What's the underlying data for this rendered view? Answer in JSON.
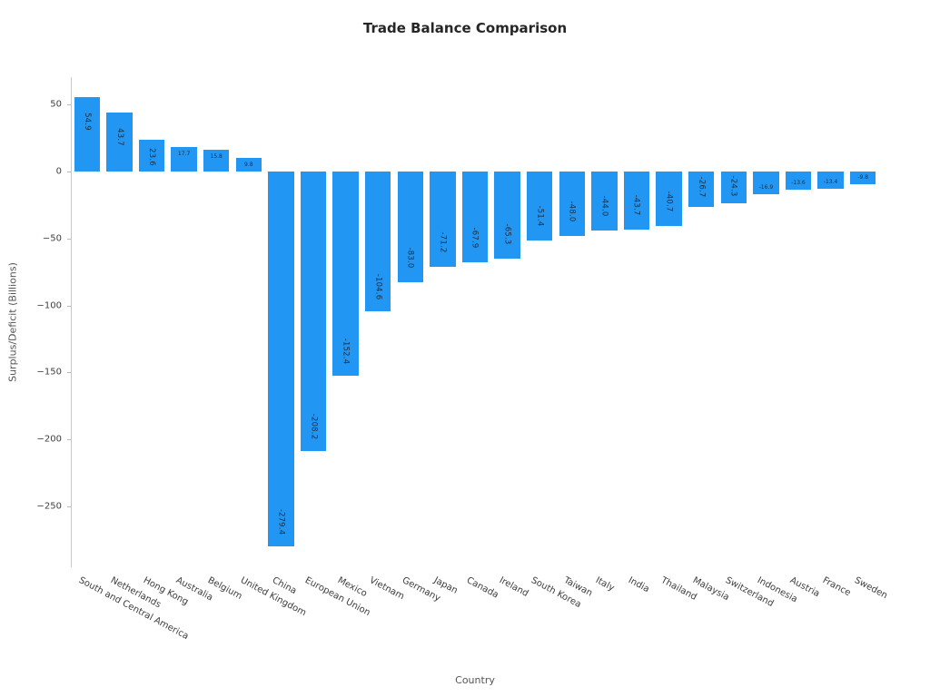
{
  "chart_data": {
    "type": "bar",
    "title": "Trade Balance Comparison",
    "xlabel": "Country",
    "ylabel": "Surplus/Deficit (Billions)",
    "categories": [
      "South and Central America",
      "Netherlands",
      "Hong Kong",
      "Australia",
      "Belgium",
      "United Kingdom",
      "China",
      "European Union",
      "Mexico",
      "Vietnam",
      "Germany",
      "Japan",
      "Canada",
      "Ireland",
      "South Korea",
      "Taiwan",
      "Italy",
      "India",
      "Thailand",
      "Malaysia",
      "Switzerland",
      "Indonesia",
      "Austria",
      "France",
      "Sweden"
    ],
    "values": [
      54.9,
      43.7,
      23.6,
      17.7,
      15.8,
      9.8,
      -279.4,
      -208.2,
      -152.4,
      -104.6,
      -83.0,
      -71.2,
      -67.9,
      -65.3,
      -51.4,
      -48.0,
      -44.0,
      -43.7,
      -40.7,
      -26.7,
      -24.3,
      -16.9,
      -13.6,
      -13.4,
      -9.8
    ],
    "yticks": [
      50,
      0,
      -50,
      -100,
      -150,
      -200,
      -250
    ],
    "ylim": [
      70,
      -295
    ],
    "bar_color": "#2196F3",
    "value_label_color": "#1f2d3d",
    "grid": false,
    "legend": false,
    "x_tick_rotation_deg": 28,
    "bar_value_labels_inside": true
  }
}
